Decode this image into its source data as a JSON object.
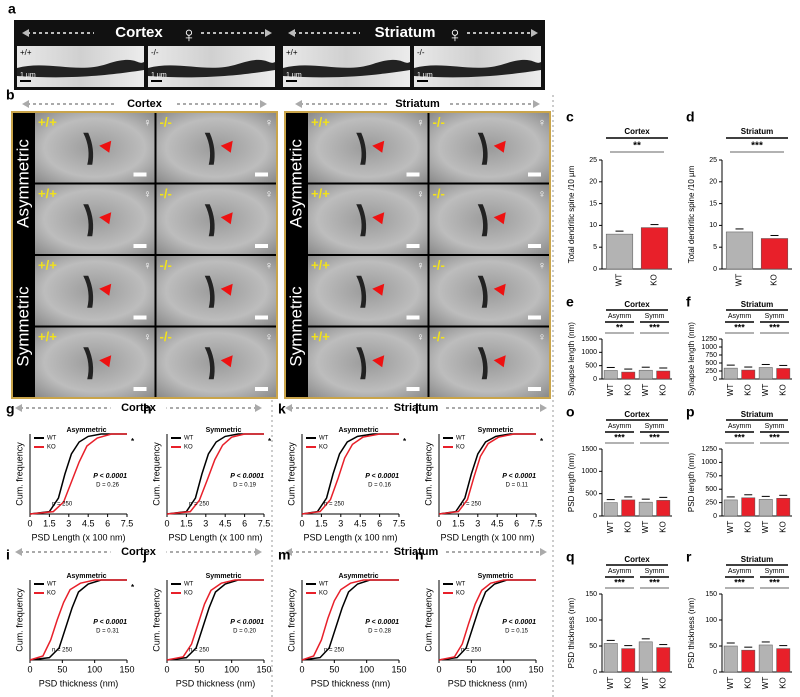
{
  "panel_a": {
    "label": "a",
    "regions": [
      {
        "title": "Cortex",
        "symbol": "♀",
        "images": [
          {
            "genotype": "+/+",
            "scale": "1 µm"
          },
          {
            "genotype": "-/-",
            "scale": "1 µm"
          }
        ]
      },
      {
        "title": "Striatum",
        "symbol": "♀",
        "images": [
          {
            "genotype": "+/+",
            "scale": "1 µm"
          },
          {
            "genotype": "-/-",
            "scale": "1 µm"
          }
        ]
      }
    ]
  },
  "panel_b": {
    "label": "b",
    "genotypes": [
      "+/+",
      "-/-"
    ],
    "symbol": "♀",
    "row_labels": [
      "Asymmetric",
      "Symmetric"
    ],
    "regions": [
      "Cortex",
      "Striatum"
    ]
  },
  "row_headers": [
    "Cortex",
    "Striatum",
    "Cortex",
    "Striatum"
  ],
  "chart_data": [
    {
      "type": "bar",
      "label": "c",
      "title": "Cortex",
      "ylabel": "Total dendritic spine /10 µm",
      "categories": [
        "WT",
        "KO"
      ],
      "values": [
        8,
        9.5
      ],
      "colors": [
        "#b3b3b3",
        "#e8202a"
      ],
      "ylim": [
        0,
        25
      ],
      "yticks": [
        0,
        5,
        10,
        15,
        20,
        25
      ],
      "significance": [
        "**"
      ]
    },
    {
      "type": "bar",
      "label": "d",
      "title": "Striatum",
      "ylabel": "Total dendritic spine /10 µm",
      "categories": [
        "WT",
        "KO"
      ],
      "values": [
        8.5,
        7
      ],
      "colors": [
        "#b3b3b3",
        "#e8202a"
      ],
      "ylim": [
        0,
        25
      ],
      "yticks": [
        0,
        5,
        10,
        15,
        20,
        25
      ],
      "significance": [
        "***"
      ]
    },
    {
      "type": "bar",
      "label": "e",
      "title": "Cortex",
      "ylabel": "Synapse length (nm)",
      "groups": [
        "Asymm",
        "Symm"
      ],
      "categories": [
        "WT",
        "KO",
        "WT",
        "KO"
      ],
      "values": [
        320,
        260,
        330,
        300
      ],
      "colors": [
        "#b3b3b3",
        "#e8202a",
        "#b3b3b3",
        "#e8202a"
      ],
      "ylim": [
        0,
        1500
      ],
      "yticks": [
        0,
        500,
        1000,
        1500
      ],
      "significance": [
        "**",
        "***"
      ]
    },
    {
      "type": "bar",
      "label": "f",
      "title": "Striatum",
      "ylabel": "Synapse length (nm)",
      "groups": [
        "Asymm",
        "Symm"
      ],
      "categories": [
        "WT",
        "KO",
        "WT",
        "KO"
      ],
      "values": [
        340,
        280,
        360,
        330
      ],
      "colors": [
        "#b3b3b3",
        "#e8202a",
        "#b3b3b3",
        "#e8202a"
      ],
      "ylim": [
        0,
        1250
      ],
      "yticks": [
        0,
        250,
        500,
        750,
        1000,
        1250
      ],
      "significance": [
        "***",
        "***"
      ]
    },
    {
      "type": "bar",
      "label": "o",
      "title": "Cortex",
      "ylabel": "PSD length (nm)",
      "groups": [
        "Asymm",
        "Symm"
      ],
      "categories": [
        "WT",
        "KO",
        "WT",
        "KO"
      ],
      "values": [
        300,
        360,
        310,
        350
      ],
      "colors": [
        "#b3b3b3",
        "#e8202a",
        "#b3b3b3",
        "#e8202a"
      ],
      "ylim": [
        0,
        1500
      ],
      "yticks": [
        0,
        500,
        1000,
        1500
      ],
      "significance": [
        "***",
        "***"
      ]
    },
    {
      "type": "bar",
      "label": "p",
      "title": "Striatum",
      "ylabel": "PSD length (nm)",
      "groups": [
        "Asymm",
        "Symm"
      ],
      "categories": [
        "WT",
        "KO",
        "WT",
        "KO"
      ],
      "values": [
        300,
        340,
        310,
        330
      ],
      "colors": [
        "#b3b3b3",
        "#e8202a",
        "#b3b3b3",
        "#e8202a"
      ],
      "ylim": [
        0,
        1250
      ],
      "yticks": [
        0,
        250,
        500,
        750,
        1000,
        1250
      ],
      "significance": [
        "***",
        "***"
      ]
    },
    {
      "type": "bar",
      "label": "q",
      "title": "Cortex",
      "ylabel": "PSD thickness (nm)",
      "groups": [
        "Asymm",
        "Symm"
      ],
      "categories": [
        "WT",
        "KO",
        "WT",
        "KO"
      ],
      "values": [
        55,
        45,
        58,
        47
      ],
      "colors": [
        "#b3b3b3",
        "#e8202a",
        "#b3b3b3",
        "#e8202a"
      ],
      "ylim": [
        0,
        150
      ],
      "yticks": [
        0,
        50,
        100,
        150
      ],
      "significance": [
        "***",
        "***"
      ]
    },
    {
      "type": "bar",
      "label": "r",
      "title": "Striatum",
      "ylabel": "PSD thickness (nm)",
      "groups": [
        "Asymm",
        "Symm"
      ],
      "categories": [
        "WT",
        "KO",
        "WT",
        "KO"
      ],
      "values": [
        50,
        42,
        52,
        45
      ],
      "colors": [
        "#b3b3b3",
        "#e8202a",
        "#b3b3b3",
        "#e8202a"
      ],
      "ylim": [
        0,
        150
      ],
      "yticks": [
        0,
        50,
        100,
        150
      ],
      "significance": [
        "***",
        "***"
      ]
    },
    {
      "type": "cdf",
      "label": "g",
      "title": "Asymmetric",
      "xlabel": "PSD Length (x 100 nm)",
      "ylabel": "Cum. frequency",
      "xlim": [
        0,
        7.5
      ],
      "xticks": [
        0,
        1.5,
        3,
        4.5,
        6,
        7.5
      ],
      "ylim": [
        0,
        1
      ],
      "series": [
        {
          "name": "WT",
          "color": "#000000",
          "x": [
            0,
            1.5,
            2.2,
            2.7,
            3.2,
            3.8,
            4.5,
            5.5,
            7.5
          ],
          "values": [
            0,
            0.03,
            0.2,
            0.5,
            0.75,
            0.9,
            0.97,
            1,
            1
          ]
        },
        {
          "name": "KO",
          "color": "#e8202a",
          "x": [
            0,
            1.8,
            2.6,
            3.2,
            3.8,
            4.4,
            5.2,
            6.3,
            7.5
          ],
          "values": [
            0,
            0.03,
            0.15,
            0.4,
            0.65,
            0.85,
            0.95,
            1,
            1
          ]
        }
      ],
      "annotations": [
        "P < 0.0001",
        "D = 0.26",
        "n = 250",
        "*"
      ]
    },
    {
      "type": "cdf",
      "label": "h",
      "title": "Symmetric",
      "xlabel": "PSD Length (x 100 nm)",
      "ylabel": "Cum. frequency",
      "xlim": [
        0,
        7.5
      ],
      "xticks": [
        0,
        1.5,
        3,
        4.5,
        6,
        7.5
      ],
      "ylim": [
        0,
        1
      ],
      "series": [
        {
          "name": "WT",
          "color": "#000000",
          "x": [
            0,
            1.5,
            2.2,
            2.7,
            3.2,
            3.8,
            4.5,
            5.5,
            7.5
          ],
          "values": [
            0,
            0.03,
            0.2,
            0.5,
            0.75,
            0.9,
            0.97,
            1,
            1
          ]
        },
        {
          "name": "KO",
          "color": "#e8202a",
          "x": [
            0,
            1.8,
            2.5,
            3.1,
            3.7,
            4.3,
            5.0,
            6.0,
            7.5
          ],
          "values": [
            0,
            0.03,
            0.17,
            0.42,
            0.68,
            0.86,
            0.96,
            1,
            1
          ]
        }
      ],
      "annotations": [
        "P < 0.0001",
        "D = 0.19",
        "n = 250",
        "*"
      ]
    },
    {
      "type": "cdf",
      "label": "k",
      "title": "Asymmetric",
      "xlabel": "PSD Length (x 100 nm)",
      "ylabel": "Cum. frequency",
      "xlim": [
        0,
        7.5
      ],
      "xticks": [
        0,
        1.5,
        3,
        4.5,
        6,
        7.5
      ],
      "ylim": [
        0,
        1
      ],
      "series": [
        {
          "name": "WT",
          "color": "#000000",
          "x": [
            0,
            1.2,
            1.9,
            2.4,
            2.9,
            3.5,
            4.3,
            5.5,
            7.5
          ],
          "values": [
            0,
            0.03,
            0.2,
            0.5,
            0.75,
            0.9,
            0.97,
            1,
            1
          ]
        },
        {
          "name": "KO",
          "color": "#e8202a",
          "x": [
            0,
            1.4,
            2.2,
            2.8,
            3.3,
            3.9,
            4.7,
            6.0,
            7.5
          ],
          "values": [
            0,
            0.03,
            0.18,
            0.45,
            0.7,
            0.87,
            0.96,
            1,
            1
          ]
        }
      ],
      "annotations": [
        "P < 0.0001",
        "D = 0.16",
        "n = 250",
        "*"
      ]
    },
    {
      "type": "cdf",
      "label": "l",
      "title": "Symmetric",
      "xlabel": "PSD Length (x 100 nm)",
      "ylabel": "Cum. frequency",
      "xlim": [
        0,
        7.5
      ],
      "xticks": [
        0,
        1.5,
        3,
        4.5,
        6,
        7.5
      ],
      "ylim": [
        0,
        1
      ],
      "series": [
        {
          "name": "WT",
          "color": "#000000",
          "x": [
            0,
            1.3,
            2.0,
            2.5,
            3.0,
            3.6,
            4.4,
            5.5,
            7.5
          ],
          "values": [
            0,
            0.03,
            0.2,
            0.5,
            0.75,
            0.9,
            0.97,
            1,
            1
          ]
        },
        {
          "name": "KO",
          "color": "#e8202a",
          "x": [
            0,
            1.5,
            2.2,
            2.7,
            3.2,
            3.8,
            4.6,
            5.8,
            7.5
          ],
          "values": [
            0,
            0.03,
            0.18,
            0.46,
            0.72,
            0.88,
            0.96,
            1,
            1
          ]
        }
      ],
      "annotations": [
        "P < 0.0001",
        "D = 0.11",
        "n = 250",
        "*"
      ]
    },
    {
      "type": "cdf",
      "label": "i",
      "title": "Asymmetric",
      "xlabel": "PSD thickness (nm)",
      "ylabel": "Cum. frequency",
      "xlim": [
        0,
        150
      ],
      "xticks": [
        0,
        50,
        100,
        150
      ],
      "ylim": [
        0,
        1
      ],
      "series": [
        {
          "name": "WT",
          "color": "#000000",
          "x": [
            0,
            30,
            45,
            55,
            65,
            75,
            90,
            110,
            150
          ],
          "values": [
            0,
            0.03,
            0.15,
            0.4,
            0.65,
            0.85,
            0.95,
            1,
            1
          ]
        },
        {
          "name": "KO",
          "color": "#e8202a",
          "x": [
            0,
            20,
            32,
            42,
            52,
            62,
            78,
            100,
            150
          ],
          "values": [
            0,
            0.05,
            0.25,
            0.5,
            0.72,
            0.88,
            0.96,
            1,
            1
          ]
        }
      ],
      "annotations": [
        "P < 0.0001",
        "D = 0.31",
        "n = 250",
        "*"
      ]
    },
    {
      "type": "cdf",
      "label": "j",
      "title": "Symmetric",
      "xlabel": "PSD thickness (nm)",
      "ylabel": "Cum. frequency",
      "xlim": [
        0,
        150
      ],
      "xticks": [
        0,
        50,
        100,
        150
      ],
      "ylim": [
        0,
        1
      ],
      "series": [
        {
          "name": "WT",
          "color": "#000000",
          "x": [
            0,
            30,
            45,
            55,
            65,
            75,
            90,
            110,
            150
          ],
          "values": [
            0,
            0.03,
            0.15,
            0.4,
            0.65,
            0.85,
            0.95,
            1,
            1
          ]
        },
        {
          "name": "KO",
          "color": "#e8202a",
          "x": [
            0,
            25,
            38,
            48,
            58,
            68,
            84,
            105,
            150
          ],
          "values": [
            0,
            0.04,
            0.2,
            0.45,
            0.7,
            0.87,
            0.96,
            1,
            1
          ]
        }
      ],
      "annotations": [
        "P < 0.0001",
        "D = 0.20",
        "n = 250"
      ]
    },
    {
      "type": "cdf",
      "label": "m",
      "title": "Asymmetric",
      "xlabel": "PSD thickness (nm)",
      "ylabel": "Cum. frequency",
      "xlim": [
        0,
        150
      ],
      "xticks": [
        0,
        50,
        100,
        150
      ],
      "ylim": [
        0,
        1
      ],
      "series": [
        {
          "name": "WT",
          "color": "#000000",
          "x": [
            0,
            28,
            42,
            52,
            62,
            72,
            86,
            105,
            150
          ],
          "values": [
            0,
            0.03,
            0.15,
            0.4,
            0.65,
            0.85,
            0.95,
            1,
            1
          ]
        },
        {
          "name": "KO",
          "color": "#e8202a",
          "x": [
            0,
            18,
            30,
            40,
            50,
            60,
            75,
            95,
            150
          ],
          "values": [
            0,
            0.05,
            0.25,
            0.52,
            0.74,
            0.88,
            0.96,
            1,
            1
          ]
        }
      ],
      "annotations": [
        "P < 0.0001",
        "D = 0.28",
        "n = 250"
      ]
    },
    {
      "type": "cdf",
      "label": "n",
      "title": "Symmetric",
      "xlabel": "PSD thickness (nm)",
      "ylabel": "Cum. frequency",
      "xlim": [
        0,
        150
      ],
      "xticks": [
        0,
        50,
        100,
        150
      ],
      "ylim": [
        0,
        1
      ],
      "series": [
        {
          "name": "WT",
          "color": "#000000",
          "x": [
            0,
            28,
            42,
            52,
            62,
            72,
            86,
            105,
            150
          ],
          "values": [
            0,
            0.03,
            0.15,
            0.4,
            0.65,
            0.85,
            0.95,
            1,
            1
          ]
        },
        {
          "name": "KO",
          "color": "#e8202a",
          "x": [
            0,
            24,
            36,
            46,
            56,
            66,
            80,
            100,
            150
          ],
          "values": [
            0,
            0.04,
            0.2,
            0.46,
            0.7,
            0.87,
            0.96,
            1,
            1
          ]
        }
      ],
      "annotations": [
        "P < 0.0001",
        "D = 0.15",
        "n = 250"
      ]
    }
  ]
}
